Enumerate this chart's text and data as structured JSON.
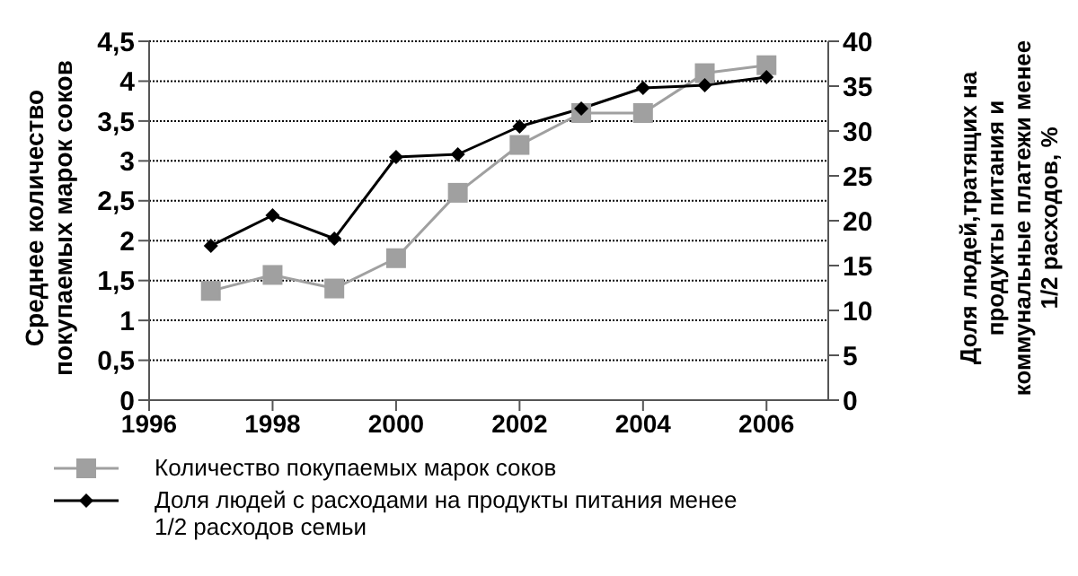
{
  "chart_data": {
    "type": "line",
    "ylabel": "Среднее количество покупаемых марок соков",
    "y2label": "Доля людей,тратящих на продукты питания и коммунальные платежи менее 1/2 расходов, %",
    "x": [
      1997,
      1998,
      1999,
      2000,
      2001,
      2002,
      2003,
      2004,
      2005,
      2006
    ],
    "series": [
      {
        "name": "Количество покупаемых марок соков",
        "color": "#a0a0a0",
        "marker": "square",
        "values": [
          1.37,
          1.57,
          1.4,
          1.78,
          2.6,
          3.2,
          3.6,
          3.6,
          4.1,
          4.2
        ]
      },
      {
        "name": "Доля людей с расходами на продукты питания менее 1/2 расходов семьи",
        "color": "#000000",
        "marker": "diamond",
        "axis": "y2",
        "values": [
          17.2,
          20.6,
          18,
          27.1,
          27.4,
          30.5,
          32.5,
          34.8,
          35.1,
          36
        ]
      }
    ],
    "xlim": [
      1996,
      2007
    ],
    "xticks": [
      1996,
      1998,
      2000,
      2002,
      2004,
      2006
    ],
    "ylim": [
      0,
      4.5
    ],
    "yticks": [
      0,
      {
        "value": 0.5,
        "label": "0,5"
      },
      1,
      {
        "value": 1.5,
        "label": "1,5"
      },
      2,
      {
        "value": 2.5,
        "label": "2,5"
      },
      3,
      {
        "value": 3.5,
        "label": "3,5"
      },
      4,
      {
        "value": 4.5,
        "label": "4,5"
      }
    ],
    "y2lim": [
      0,
      40
    ],
    "y2ticks": [
      0,
      5,
      10,
      15,
      20,
      25,
      30,
      35,
      40
    ],
    "grid": "y",
    "legend": "bottom left"
  }
}
